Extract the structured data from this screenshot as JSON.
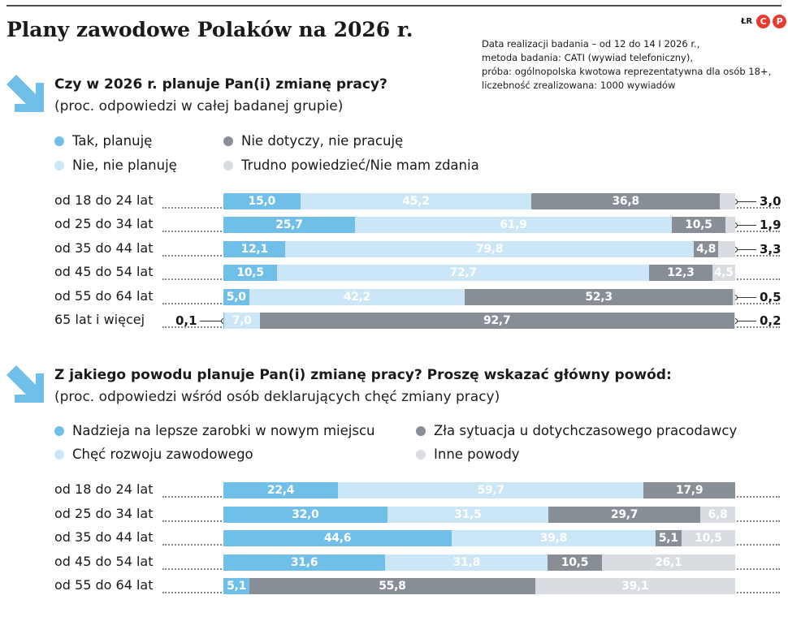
{
  "title": "Plany zawodowe Polaków na 2026 r.",
  "source_note": [
    "Data realizacji badania – od 12 do 14 I 2026 r.,",
    "metoda badania: CATI (wywiad telefoniczny),",
    "próba: ogólnopolska kwotowa reprezentatywna dla osób 18+,",
    "liczebność zrealizowana: 1000 wywiadów"
  ],
  "logo": {
    "initials": "ŁR",
    "letters": [
      "C",
      "P"
    ]
  },
  "colors": {
    "c1": "#6fbfe8",
    "c2": "#cbe6f6",
    "c3": "#878e96",
    "c4": "#d9dde1",
    "arrow": "#6fbfe8",
    "logo": "#e63b2e"
  },
  "icons": [
    "arrow-down-right-icon"
  ],
  "chart_data": [
    {
      "type": "bar",
      "stacked": true,
      "orientation": "horizontal",
      "title": "Czy w 2026 r. planuje Pan(i) zmianę pracy?",
      "subtitle": "(proc. odpowiedzi w całej badanej grupie)",
      "categories": [
        "od 18 do 24 lat",
        "od 25 do 34 lat",
        "od 35 do 44 lat",
        "od 45 do 54 lat",
        "od 55 do 64 lat",
        "65 lat i więcej"
      ],
      "series": [
        {
          "name": "Tak, planuję",
          "color": "#6fbfe8",
          "values": [
            15.0,
            25.7,
            12.1,
            10.5,
            5.0,
            0.1
          ],
          "labels": [
            "15,0",
            "25,7",
            "12,1",
            "10,5",
            "5,0",
            "0,1"
          ]
        },
        {
          "name": "Nie, nie planuję",
          "color": "#cbe6f6",
          "values": [
            45.2,
            61.9,
            79.8,
            72.7,
            42.2,
            7.0
          ],
          "labels": [
            "45,2",
            "61,9",
            "79,8",
            "72,7",
            "42,2",
            "7,0"
          ]
        },
        {
          "name": "Nie dotyczy, nie pracuję",
          "color": "#878e96",
          "values": [
            36.8,
            10.5,
            4.8,
            12.3,
            52.3,
            92.7
          ],
          "labels": [
            "36,8",
            "10,5",
            "4,8",
            "12,3",
            "52,3",
            "92,7"
          ]
        },
        {
          "name": "Trudno powiedzieć/Nie mam zdania",
          "color": "#d9dde1",
          "values": [
            3.0,
            1.9,
            3.3,
            4.5,
            0.5,
            0.2
          ],
          "labels": [
            "3,0",
            "1,9",
            "3,3",
            "4,5",
            "0,5",
            "0,2"
          ]
        }
      ],
      "legend_placement": "top"
    },
    {
      "type": "bar",
      "stacked": true,
      "orientation": "horizontal",
      "title": "Z jakiego powodu planuje Pan(i) zmianę pracy? Proszę wskazać główny powód:",
      "subtitle": "(proc. odpowiedzi wśród osób deklarujących chęć zmiany pracy)",
      "categories": [
        "od 18 do 24 lat",
        "od 25 do 34 lat",
        "od 35 do 44 lat",
        "od 45 do 54 lat",
        "od 55 do 64 lat"
      ],
      "series": [
        {
          "name": "Nadzieja na lepsze zarobki w nowym miejscu",
          "color": "#6fbfe8",
          "values": [
            22.4,
            32.0,
            44.6,
            31.6,
            5.1
          ],
          "labels": [
            "22,4",
            "32,0",
            "44,6",
            "31,6",
            "5,1"
          ]
        },
        {
          "name": "Chęć rozwoju zawodowego",
          "color": "#cbe6f6",
          "values": [
            59.7,
            31.5,
            39.8,
            31.8,
            null
          ],
          "labels": [
            "59,7",
            "31,5",
            "39,8",
            "31,8",
            ""
          ]
        },
        {
          "name": "Zła sytuacja u dotychczasowego pracodawcy",
          "color": "#878e96",
          "values": [
            17.9,
            29.7,
            5.1,
            10.5,
            55.8
          ],
          "labels": [
            "17,9",
            "29,7",
            "5,1",
            "10,5",
            "55,8"
          ]
        },
        {
          "name": "Inne powody",
          "color": "#d9dde1",
          "values": [
            null,
            6.8,
            10.5,
            26.1,
            39.1
          ],
          "labels": [
            "",
            "6,8",
            "10,5",
            "26,1",
            "39,1"
          ]
        }
      ],
      "legend_placement": "top"
    }
  ]
}
